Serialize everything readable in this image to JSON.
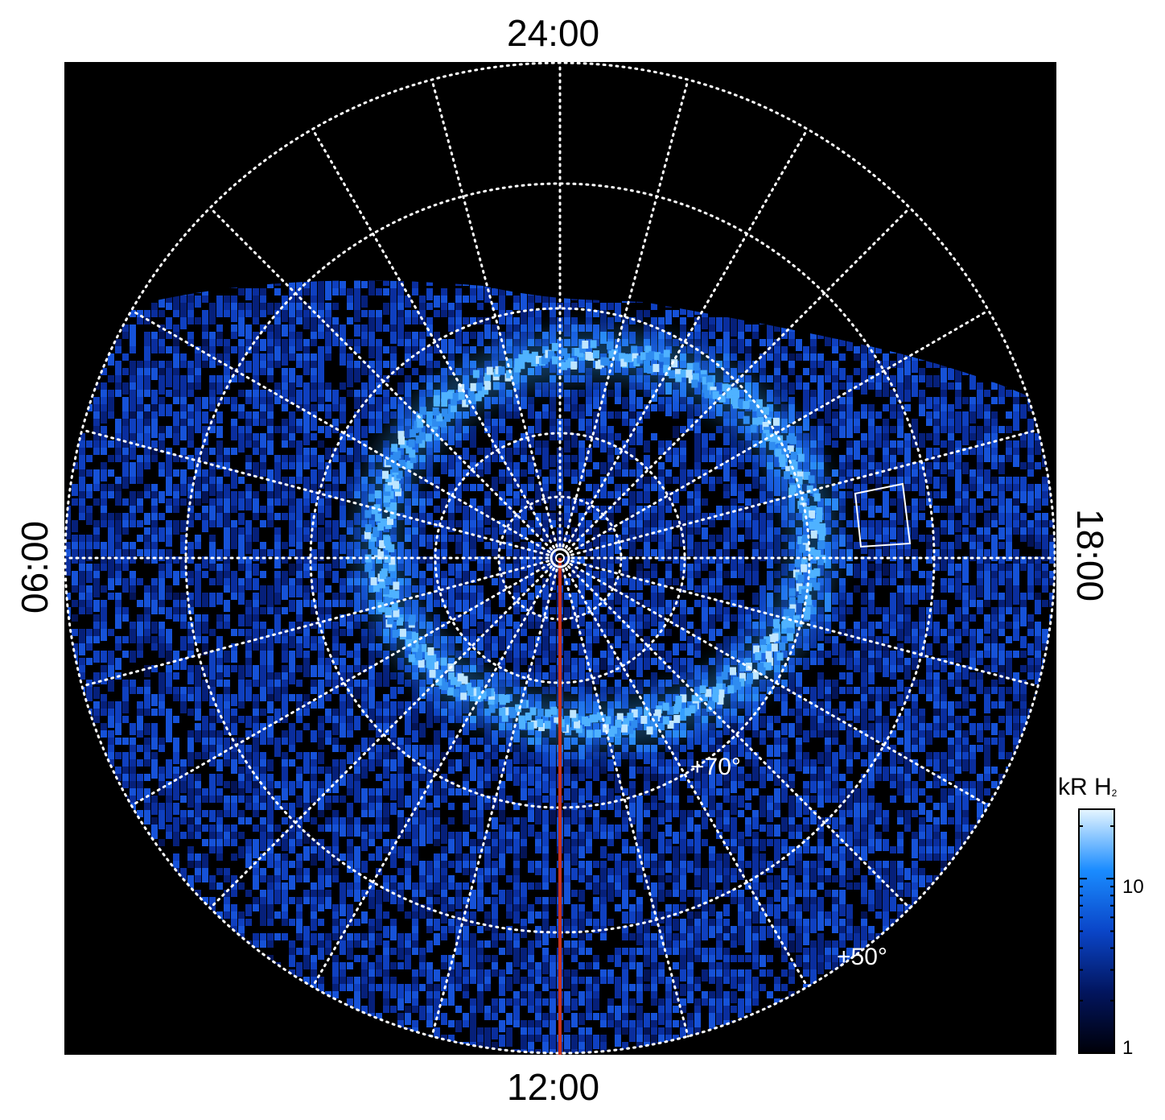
{
  "figure": {
    "time_labels": {
      "top": "24:00",
      "bottom": "12:00",
      "left": "06:00",
      "right": "18:00"
    },
    "latitude_labels": [
      "+70°",
      "+50°"
    ],
    "colorbar": {
      "title_main": "kR H",
      "title_sub": "2",
      "ticks": [
        "10",
        "1"
      ],
      "scale": "log",
      "range": [
        1,
        25
      ]
    },
    "colors": {
      "background": "#000000",
      "grid": "#ffffff",
      "meridian_line": "#c8341f",
      "emission_dark": "#04124a",
      "emission_bright": "#2f9bff",
      "emission_peak": "#c8ecff"
    }
  }
}
